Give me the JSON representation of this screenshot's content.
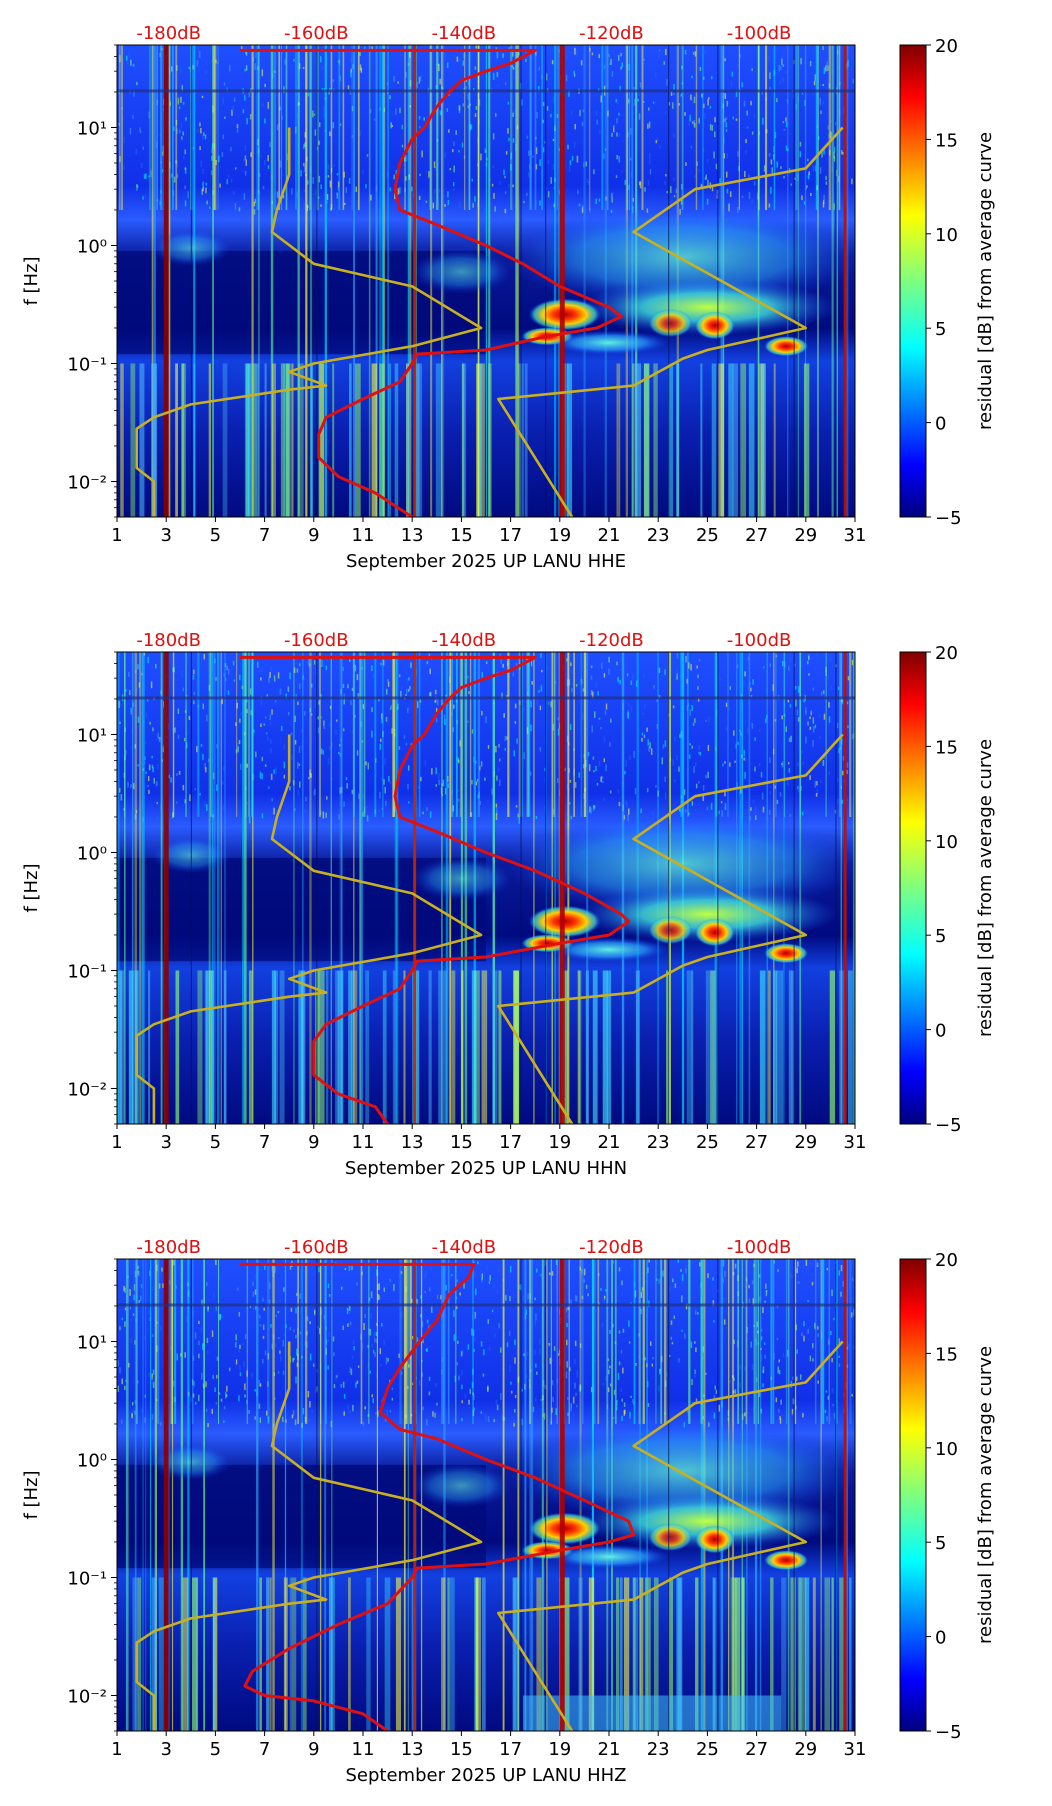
{
  "colors": {
    "noise_curve": "#e01010",
    "model_curve": "#c8b020",
    "db_label": "#e01010",
    "colormap": [
      "#00007f",
      "#0000ff",
      "#007fff",
      "#00ffff",
      "#7fff7f",
      "#ffff00",
      "#ff7f00",
      "#ff0000",
      "#7f0000"
    ]
  },
  "chart_data": [
    {
      "type": "heatmap",
      "title": "",
      "xlabel": "September 2025 UP LANU  HHE",
      "ylabel": "f [Hz]",
      "xlim": [
        1,
        31
      ],
      "ylim": [
        0.005,
        50
      ],
      "yscale": "log",
      "xticks": [
        1,
        3,
        5,
        7,
        9,
        11,
        13,
        15,
        17,
        19,
        21,
        23,
        25,
        27,
        29,
        31
      ],
      "xtick_labels": [
        "1",
        "3",
        "5",
        "7",
        "9",
        "11",
        "13",
        "15",
        "17",
        "19",
        "21",
        "23",
        "25",
        "27",
        "29",
        "31"
      ],
      "yticks": [
        0.01,
        0.1,
        1,
        10
      ],
      "ytick_labels": [
        "10⁻²",
        "10⁻¹",
        "10⁰",
        "10¹"
      ],
      "top_axis": {
        "ticks": [
          3.1,
          9.1,
          15.1,
          21.1,
          27.1
        ],
        "labels": [
          "-180dB",
          "-160dB",
          "-140dB",
          "-120dB",
          "-100dB"
        ]
      },
      "colorbar": {
        "label": "residual [dB] from average curve",
        "range": [
          -5,
          20
        ],
        "ticks": [
          -5,
          0,
          5,
          10,
          15,
          20
        ],
        "tick_labels": [
          "−5",
          "0",
          "5",
          "10",
          "15",
          "20"
        ]
      },
      "series": [
        {
          "name": "noise curve",
          "color": "red",
          "points": [
            [
              6,
              45
            ],
            [
              13,
              45
            ],
            [
              16,
              45
            ],
            [
              18,
              45
            ],
            [
              17,
              35
            ],
            [
              16,
              30
            ],
            [
              15,
              25
            ],
            [
              14.5,
              20
            ],
            [
              14,
              15
            ],
            [
              13.5,
              10
            ],
            [
              13,
              8
            ],
            [
              12.5,
              5
            ],
            [
              12.3,
              3
            ],
            [
              12.5,
              2
            ],
            [
              14,
              1.5
            ],
            [
              16,
              1
            ],
            [
              17.5,
              0.7
            ],
            [
              19,
              0.45
            ],
            [
              21,
              0.3
            ],
            [
              21.5,
              0.25
            ],
            [
              20.5,
              0.2
            ],
            [
              18.5,
              0.17
            ],
            [
              16,
              0.13
            ],
            [
              13.2,
              0.12
            ],
            [
              13,
              0.1
            ],
            [
              12.5,
              0.07
            ],
            [
              11,
              0.05
            ],
            [
              9.5,
              0.035
            ],
            [
              9.2,
              0.025
            ],
            [
              9.2,
              0.016
            ],
            [
              10,
              0.011
            ],
            [
              11.5,
              0.008
            ],
            [
              13,
              0.005
            ]
          ]
        },
        {
          "name": "model curve",
          "color": "olive",
          "points": [
            [
              8,
              10
            ],
            [
              8,
              4
            ],
            [
              7.5,
              2
            ],
            [
              7.3,
              1.3
            ],
            [
              9,
              0.7
            ],
            [
              13,
              0.45
            ],
            [
              15.8,
              0.2
            ],
            [
              13,
              0.14
            ],
            [
              9,
              0.1
            ],
            [
              8,
              0.085
            ],
            [
              9.5,
              0.065
            ],
            [
              8,
              0.06
            ],
            [
              4,
              0.045
            ],
            [
              2.5,
              0.035
            ],
            [
              1.8,
              0.028
            ],
            [
              1.8,
              0.013
            ],
            [
              2.5,
              0.01
            ],
            [
              2.5,
              0.005
            ]
          ]
        },
        {
          "name": "model curve right",
          "color": "olive",
          "points": [
            [
              30.5,
              10
            ],
            [
              29,
              4.5
            ],
            [
              24.5,
              3
            ],
            [
              22,
              1.3
            ],
            [
              29,
              0.2
            ],
            [
              25,
              0.13
            ],
            [
              24,
              0.11
            ],
            [
              22,
              0.065
            ],
            [
              16.5,
              0.05
            ],
            [
              19.5,
              0.005
            ]
          ]
        }
      ]
    },
    {
      "type": "heatmap",
      "title": "",
      "xlabel": "September 2025 UP LANU  HHN",
      "ylabel": "f [Hz]",
      "xlim": [
        1,
        31
      ],
      "ylim": [
        0.005,
        50
      ],
      "yscale": "log",
      "xticks": [
        1,
        3,
        5,
        7,
        9,
        11,
        13,
        15,
        17,
        19,
        21,
        23,
        25,
        27,
        29,
        31
      ],
      "xtick_labels": [
        "1",
        "3",
        "5",
        "7",
        "9",
        "11",
        "13",
        "15",
        "17",
        "19",
        "21",
        "23",
        "25",
        "27",
        "29",
        "31"
      ],
      "yticks": [
        0.01,
        0.1,
        1,
        10
      ],
      "ytick_labels": [
        "10⁻²",
        "10⁻¹",
        "10⁰",
        "10¹"
      ],
      "top_axis": {
        "ticks": [
          3.1,
          9.1,
          15.1,
          21.1,
          27.1
        ],
        "labels": [
          "-180dB",
          "-160dB",
          "-140dB",
          "-120dB",
          "-100dB"
        ]
      },
      "colorbar": {
        "label": "residual [dB] from average curve",
        "range": [
          -5,
          20
        ],
        "ticks": [
          -5,
          0,
          5,
          10,
          15,
          20
        ],
        "tick_labels": [
          "−5",
          "0",
          "5",
          "10",
          "15",
          "20"
        ]
      },
      "series": [
        {
          "name": "noise curve",
          "color": "red",
          "points": [
            [
              6,
              45
            ],
            [
              13,
              45
            ],
            [
              16,
              45
            ],
            [
              18,
              45
            ],
            [
              17,
              35
            ],
            [
              16,
              30
            ],
            [
              15,
              25
            ],
            [
              14.5,
              20
            ],
            [
              14,
              15
            ],
            [
              13.5,
              10
            ],
            [
              13,
              8
            ],
            [
              12.5,
              5
            ],
            [
              12.3,
              3
            ],
            [
              12.5,
              2
            ],
            [
              14,
              1.5
            ],
            [
              16,
              1
            ],
            [
              18,
              0.7
            ],
            [
              20,
              0.45
            ],
            [
              21.5,
              0.3
            ],
            [
              21.8,
              0.26
            ],
            [
              21,
              0.2
            ],
            [
              19,
              0.17
            ],
            [
              16,
              0.13
            ],
            [
              13.2,
              0.12
            ],
            [
              13,
              0.1
            ],
            [
              12.5,
              0.07
            ],
            [
              11,
              0.05
            ],
            [
              9.5,
              0.035
            ],
            [
              9.0,
              0.025
            ],
            [
              9.0,
              0.013
            ],
            [
              10,
              0.009
            ],
            [
              11.5,
              0.007
            ],
            [
              12,
              0.005
            ]
          ]
        },
        {
          "name": "model curve",
          "color": "olive",
          "points": [
            [
              8,
              10
            ],
            [
              8,
              4
            ],
            [
              7.5,
              2
            ],
            [
              7.3,
              1.3
            ],
            [
              9,
              0.7
            ],
            [
              13,
              0.45
            ],
            [
              15.8,
              0.2
            ],
            [
              13,
              0.14
            ],
            [
              9,
              0.1
            ],
            [
              8,
              0.085
            ],
            [
              9.5,
              0.065
            ],
            [
              8,
              0.06
            ],
            [
              4,
              0.045
            ],
            [
              2.5,
              0.035
            ],
            [
              1.8,
              0.028
            ],
            [
              1.8,
              0.013
            ],
            [
              2.5,
              0.01
            ],
            [
              2.5,
              0.005
            ]
          ]
        },
        {
          "name": "model curve right",
          "color": "olive",
          "points": [
            [
              30.5,
              10
            ],
            [
              29,
              4.5
            ],
            [
              24.5,
              3
            ],
            [
              22,
              1.3
            ],
            [
              29,
              0.2
            ],
            [
              25,
              0.13
            ],
            [
              24,
              0.11
            ],
            [
              22,
              0.065
            ],
            [
              16.5,
              0.05
            ],
            [
              19.5,
              0.005
            ]
          ]
        }
      ]
    },
    {
      "type": "heatmap",
      "title": "",
      "xlabel": "September 2025 UP LANU  HHZ",
      "ylabel": "f [Hz]",
      "xlim": [
        1,
        31
      ],
      "ylim": [
        0.005,
        50
      ],
      "yscale": "log",
      "xticks": [
        1,
        3,
        5,
        7,
        9,
        11,
        13,
        15,
        17,
        19,
        21,
        23,
        25,
        27,
        29,
        31
      ],
      "xtick_labels": [
        "1",
        "3",
        "5",
        "7",
        "9",
        "11",
        "13",
        "15",
        "17",
        "19",
        "21",
        "23",
        "25",
        "27",
        "29",
        "31"
      ],
      "yticks": [
        0.01,
        0.1,
        1,
        10
      ],
      "ytick_labels": [
        "10⁻²",
        "10⁻¹",
        "10⁰",
        "10¹"
      ],
      "top_axis": {
        "ticks": [
          3.1,
          9.1,
          15.1,
          21.1,
          27.1
        ],
        "labels": [
          "-180dB",
          "-160dB",
          "-140dB",
          "-120dB",
          "-100dB"
        ]
      },
      "colorbar": {
        "label": "residual [dB] from average curve",
        "range": [
          -5,
          20
        ],
        "ticks": [
          -5,
          0,
          5,
          10,
          15,
          20
        ],
        "tick_labels": [
          "−5",
          "0",
          "5",
          "10",
          "15",
          "20"
        ]
      },
      "series": [
        {
          "name": "noise curve",
          "color": "red",
          "points": [
            [
              6,
              45
            ],
            [
              13,
              45
            ],
            [
              15.5,
              45
            ],
            [
              15.3,
              35
            ],
            [
              14.5,
              25
            ],
            [
              14,
              15
            ],
            [
              13.3,
              10
            ],
            [
              12.5,
              6
            ],
            [
              12,
              4
            ],
            [
              11.7,
              2.5
            ],
            [
              12.5,
              1.8
            ],
            [
              14,
              1.5
            ],
            [
              16,
              1
            ],
            [
              18,
              0.7
            ],
            [
              20,
              0.45
            ],
            [
              21.8,
              0.3
            ],
            [
              22,
              0.23
            ],
            [
              21,
              0.2
            ],
            [
              19,
              0.17
            ],
            [
              16,
              0.13
            ],
            [
              13.2,
              0.12
            ],
            [
              13,
              0.1
            ],
            [
              12,
              0.06
            ],
            [
              10,
              0.04
            ],
            [
              8,
              0.025
            ],
            [
              6.5,
              0.016
            ],
            [
              6.2,
              0.012
            ],
            [
              7,
              0.01
            ],
            [
              9,
              0.009
            ],
            [
              11,
              0.007
            ],
            [
              12,
              0.005
            ]
          ]
        },
        {
          "name": "model curve",
          "color": "olive",
          "points": [
            [
              8,
              10
            ],
            [
              8,
              4
            ],
            [
              7.5,
              2
            ],
            [
              7.3,
              1.3
            ],
            [
              9,
              0.7
            ],
            [
              13,
              0.45
            ],
            [
              15.8,
              0.2
            ],
            [
              13,
              0.14
            ],
            [
              9,
              0.1
            ],
            [
              8,
              0.085
            ],
            [
              9.5,
              0.065
            ],
            [
              8,
              0.06
            ],
            [
              4,
              0.045
            ],
            [
              2.5,
              0.035
            ],
            [
              1.8,
              0.028
            ],
            [
              1.8,
              0.013
            ],
            [
              2.5,
              0.01
            ],
            [
              2.5,
              0.005
            ]
          ]
        },
        {
          "name": "model curve right",
          "color": "olive",
          "points": [
            [
              30.5,
              10
            ],
            [
              29,
              4.5
            ],
            [
              24.5,
              3
            ],
            [
              22,
              1.3
            ],
            [
              29,
              0.2
            ],
            [
              25,
              0.13
            ],
            [
              24,
              0.11
            ],
            [
              22,
              0.065
            ],
            [
              16.5,
              0.05
            ],
            [
              19.5,
              0.005
            ]
          ]
        }
      ]
    }
  ]
}
